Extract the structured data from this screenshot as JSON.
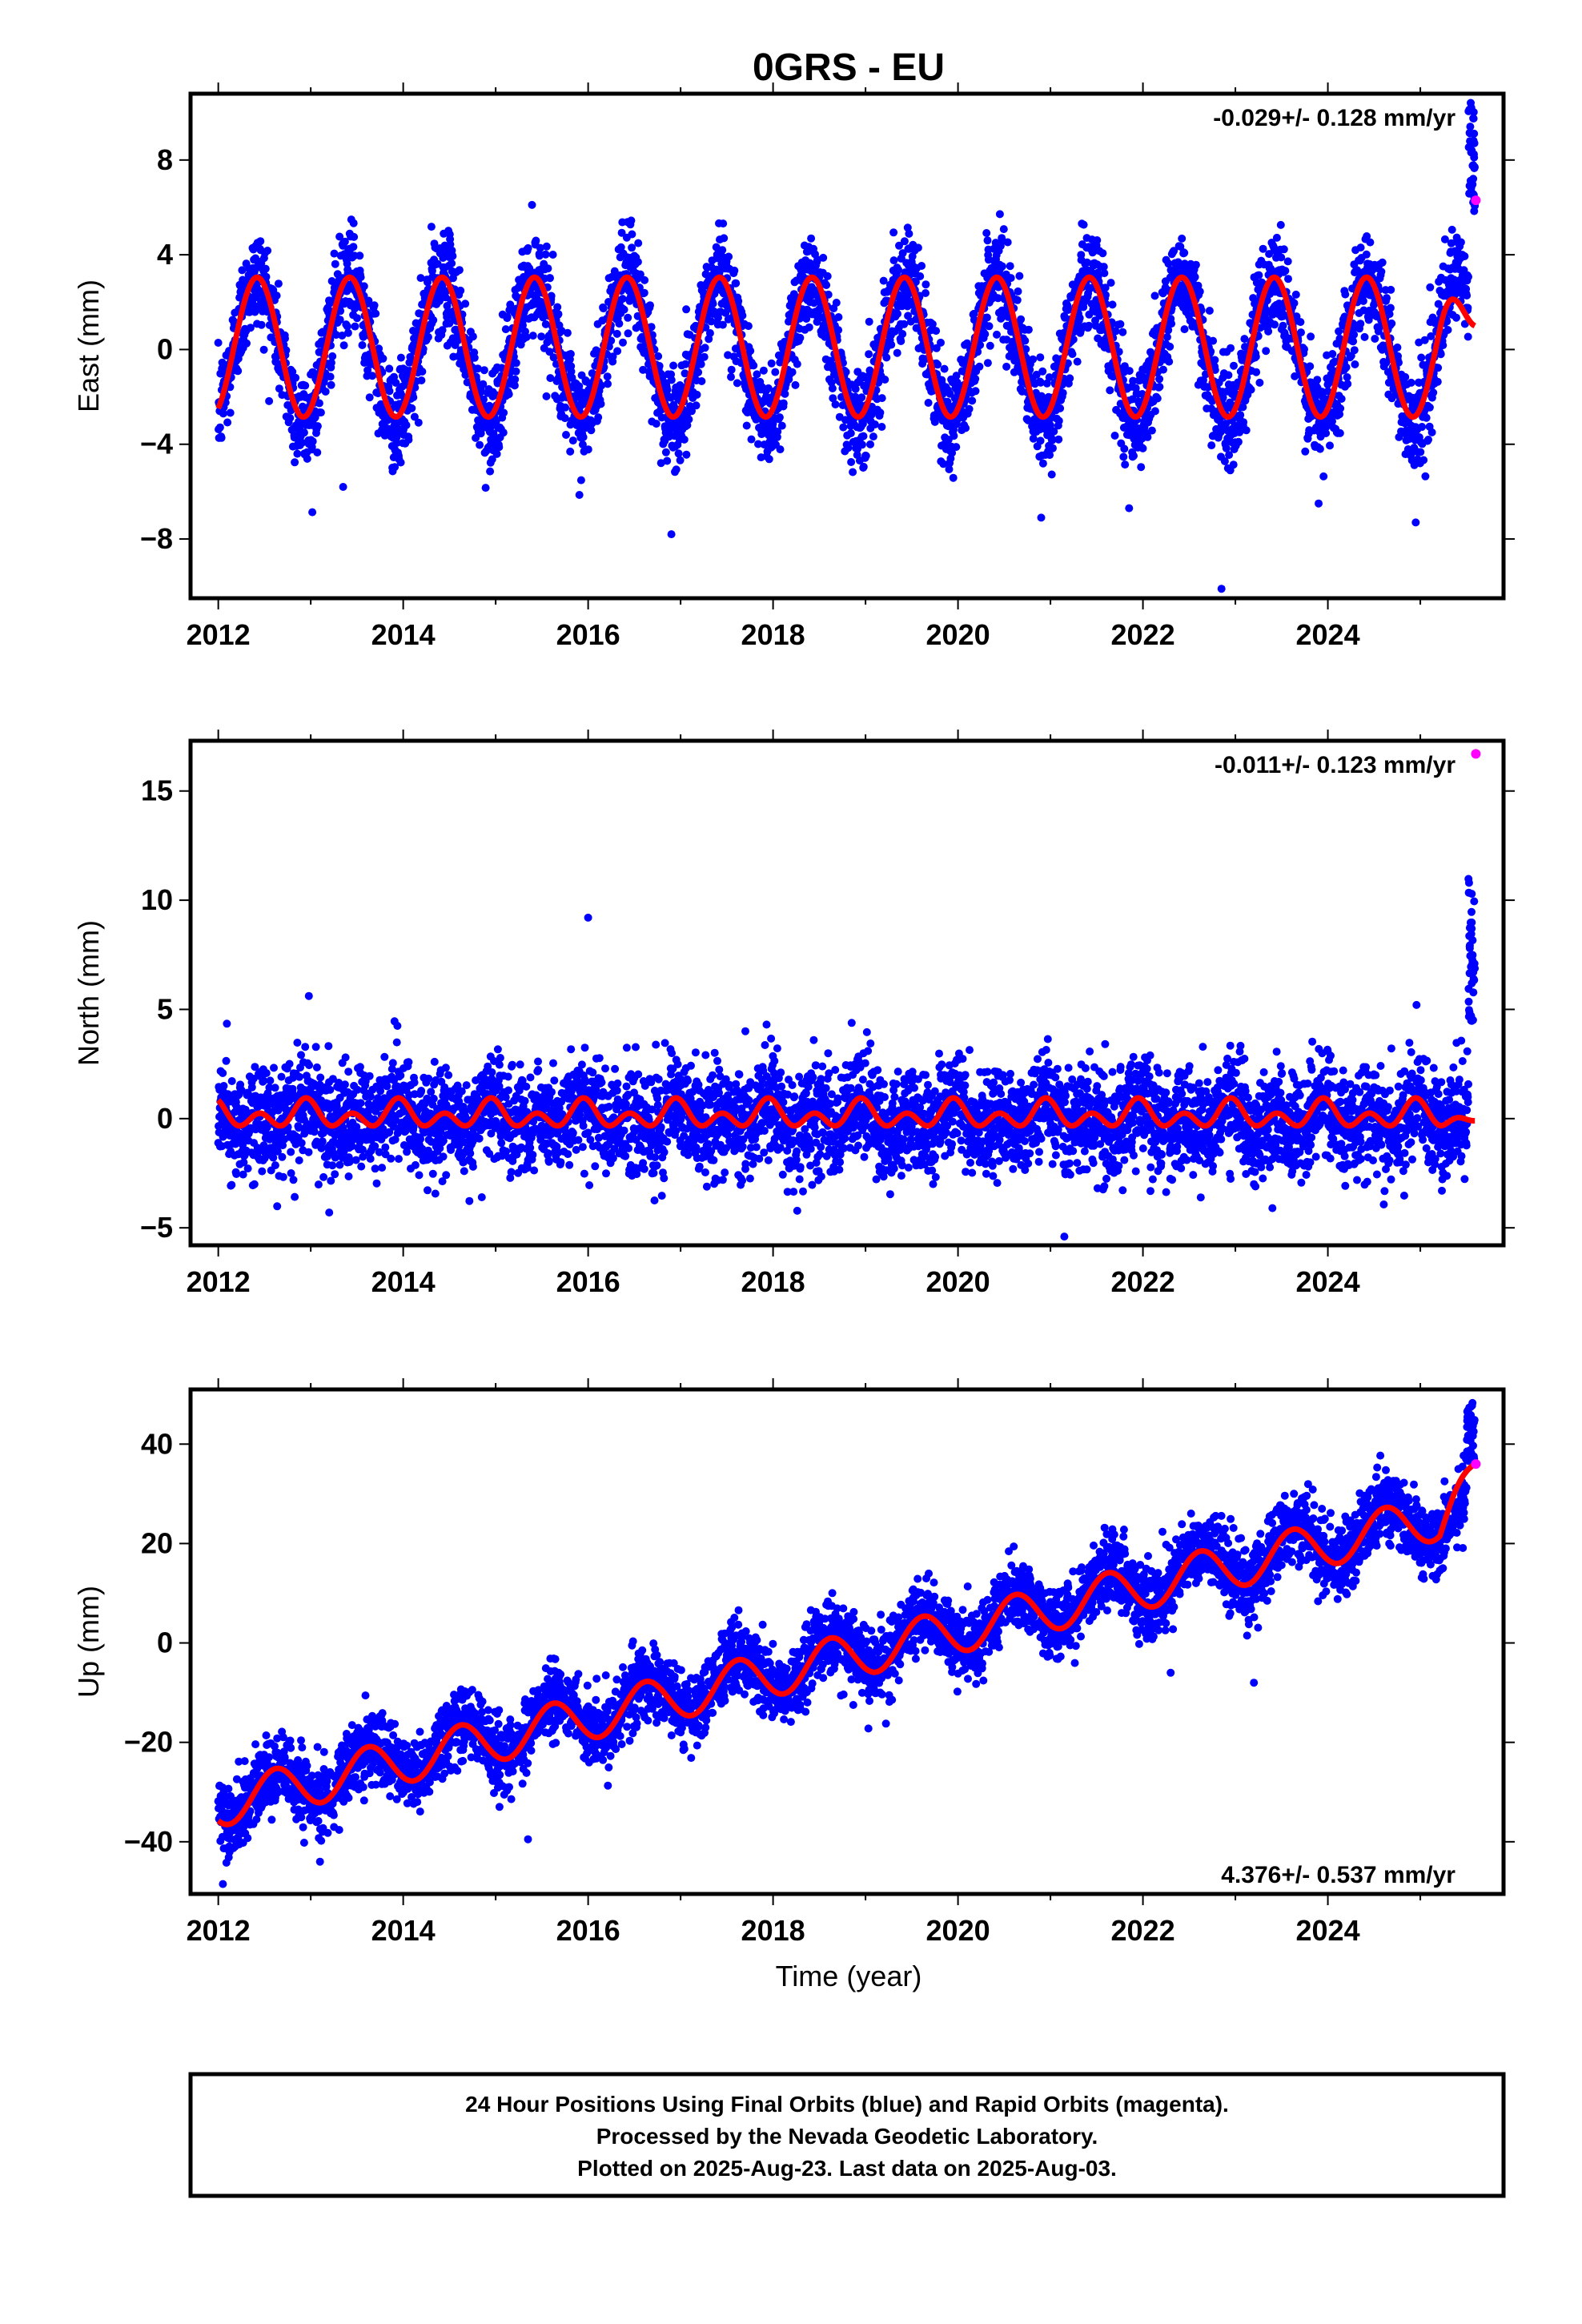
{
  "title": "0GRS - EU",
  "colors": {
    "final_orbits": "#0000ff",
    "rapid_orbits": "#ff00ff",
    "model_fit": "#ff0000",
    "frame": "#000000"
  },
  "xlabel": "Time (year)",
  "caption": {
    "line1": "24 Hour Positions Using Final Orbits (blue) and Rapid Orbits (magenta).",
    "line2": "Processed by the Nevada Geodetic Laboratory.",
    "line3": "Plotted on 2025-Aug-23. Last data on 2025-Aug-03."
  },
  "chart_data": [
    {
      "type": "scatter",
      "panel": "east",
      "ylabel": "East (mm)",
      "rate_label": "-0.029+/- 0.128 mm/yr",
      "rate_label_position": "top-right",
      "xlim": [
        2011.7,
        2025.9
      ],
      "ylim": [
        -10.5,
        10.8
      ],
      "xticks": [
        2012,
        2014,
        2016,
        2018,
        2020,
        2022,
        2024
      ],
      "xticklabels": [
        "2012",
        "2014",
        "2016",
        "2018",
        "2020",
        "2022",
        "2024"
      ],
      "yticks": [
        -8,
        -4,
        0,
        4,
        8
      ],
      "yticklabels": [
        "−8",
        "−4",
        "0",
        "4",
        "8"
      ],
      "series": [
        {
          "role": "final_orbits",
          "x_range": [
            2012.0,
            2025.59
          ],
          "trend": -2.9e-05,
          "intercept": 0.0,
          "annual_amplitude": 3.0,
          "annual_peak_phase": 0.42,
          "semiannual_amplitude": 0.0,
          "scatter_sd": 1.05,
          "n_points": 4800,
          "outliers": [
            [
              2016.9,
              -7.8
            ],
            [
              2022.85,
              -10.1
            ],
            [
              2020.9,
              -7.1
            ],
            [
              2013.35,
              -5.8
            ],
            [
              2021.85,
              -6.7
            ],
            [
              2023.9,
              -6.5
            ],
            [
              2024.95,
              -7.3
            ]
          ],
          "end_cluster": {
            "x": [
              2025.52,
              2025.59
            ],
            "y": [
              5.8,
              10.6
            ]
          }
        },
        {
          "role": "rapid_orbits",
          "points": [
            [
              2025.6,
              6.3
            ]
          ]
        },
        {
          "role": "model_fit",
          "x_range": [
            2012.0,
            2025.59
          ],
          "trend": -2.9e-05,
          "intercept": 0.1,
          "annual_amplitude": 2.95,
          "annual_peak_phase": 0.42,
          "semiannual_amplitude": 0.0,
          "end_value": 1.0
        }
      ]
    },
    {
      "type": "scatter",
      "panel": "north",
      "ylabel": "North (mm)",
      "rate_label": "-0.011+/- 0.123 mm/yr",
      "rate_label_position": "top-right",
      "xlim": [
        2011.7,
        2025.9
      ],
      "ylim": [
        -5.8,
        17.3
      ],
      "xticks": [
        2012,
        2014,
        2016,
        2018,
        2020,
        2022,
        2024
      ],
      "xticklabels": [
        "2012",
        "2014",
        "2016",
        "2018",
        "2020",
        "2022",
        "2024"
      ],
      "yticks": [
        -5,
        0,
        5,
        10,
        15
      ],
      "yticklabels": [
        "−5",
        "0",
        "5",
        "10",
        "15"
      ],
      "series": [
        {
          "role": "final_orbits",
          "x_range": [
            2012.0,
            2025.59
          ],
          "trend": -1.1e-05,
          "intercept": 0.0,
          "annual_amplitude": 0.35,
          "annual_peak_phase": 0.95,
          "semiannual_amplitude": 0.45,
          "scatter_sd": 1.2,
          "n_points": 4800,
          "outliers": [
            [
              2016.0,
              9.2
            ],
            [
              2021.15,
              -5.4
            ],
            [
              2013.2,
              -4.3
            ],
            [
              2017.7,
              4.0
            ],
            [
              2023.4,
              -4.1
            ],
            [
              2014.85,
              -3.6
            ]
          ],
          "end_cluster": {
            "x": [
              2025.52,
              2025.59
            ],
            "y": [
              4.4,
              11.0
            ]
          }
        },
        {
          "role": "rapid_orbits",
          "points": [
            [
              2025.6,
              16.7
            ]
          ]
        },
        {
          "role": "model_fit",
          "x_range": [
            2012.0,
            2025.59
          ],
          "trend": -1.1e-05,
          "intercept": 0.15,
          "annual_amplitude": 0.35,
          "annual_peak_phase": 0.95,
          "semiannual_amplitude": 0.45,
          "end_value": -0.1
        }
      ]
    },
    {
      "type": "scatter",
      "panel": "up",
      "ylabel": "Up (mm)",
      "rate_label": "4.376+/- 0.537 mm/yr",
      "rate_label_position": "bottom-right",
      "xlim": [
        2011.7,
        2025.9
      ],
      "ylim": [
        -50.5,
        51
      ],
      "xticks": [
        2012,
        2014,
        2016,
        2018,
        2020,
        2022,
        2024
      ],
      "xticklabels": [
        "2012",
        "2014",
        "2016",
        "2018",
        "2020",
        "2022",
        "2024"
      ],
      "yticks": [
        -40,
        -20,
        0,
        20,
        40
      ],
      "yticklabels": [
        "−40",
        "−20",
        "0",
        "20",
        "40"
      ],
      "series": [
        {
          "role": "final_orbits",
          "x_range": [
            2012.0,
            2025.59
          ],
          "trend": 4.376,
          "intercept": -32.0,
          "annual_amplitude": 4.5,
          "annual_peak_phase": 0.62,
          "semiannual_amplitude": 0.0,
          "scatter_sd": 3.6,
          "n_points": 4800,
          "outliers": [
            [
              2012.05,
              -48.5
            ],
            [
              2013.1,
              -44.0
            ],
            [
              2015.35,
              -39.5
            ],
            [
              2022.3,
              -6.0
            ],
            [
              2023.2,
              -8.0
            ]
          ],
          "end_cluster": {
            "x": [
              2025.5,
              2025.59
            ],
            "y": [
              36.0,
              48.5
            ]
          }
        },
        {
          "role": "rapid_orbits",
          "points": [
            [
              2025.6,
              36.0
            ]
          ]
        },
        {
          "role": "model_fit",
          "x_range": [
            2012.0,
            2025.59
          ],
          "trend": 4.376,
          "intercept": -32.5,
          "annual_amplitude": 4.5,
          "annual_peak_phase": 0.62,
          "semiannual_amplitude": 0.0,
          "end_value": 36.0
        }
      ]
    }
  ]
}
